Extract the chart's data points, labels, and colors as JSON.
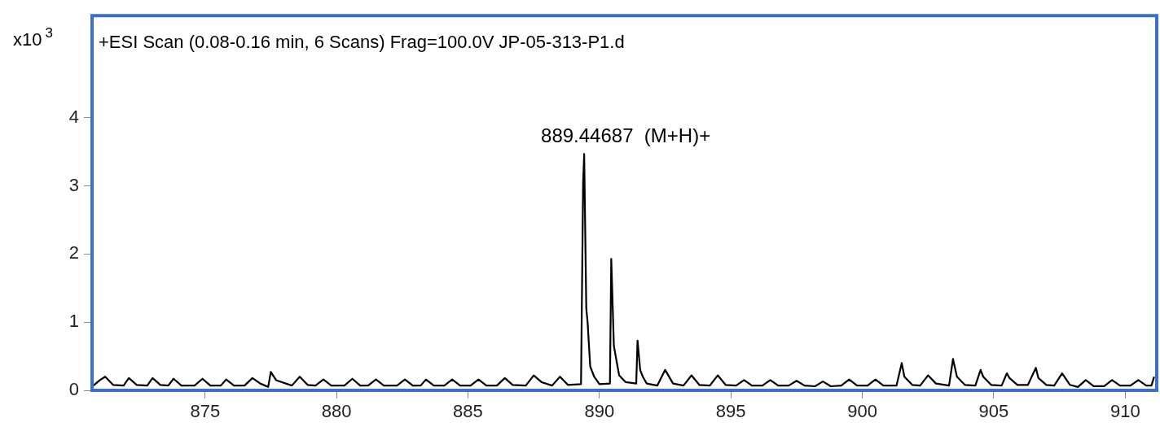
{
  "chart_data": {
    "type": "line",
    "title": "+ESI Scan (0.08-0.16 min, 6 Scans) Frag=100.0V JP-05-313-P1.d",
    "ylabel": "x10$^{3}$",
    "annotations": [
      {
        "text": "889.44687  (M+H)+",
        "x": 889.45,
        "y": 3.47
      }
    ],
    "xlim": [
      870.7,
      911.2
    ],
    "xticks": [
      875,
      880,
      885,
      890,
      895,
      900,
      905,
      910
    ],
    "ylim": [
      0,
      5.5
    ],
    "yticks": [
      0,
      1,
      2,
      3,
      4
    ],
    "grid": false,
    "legend": false,
    "marker": "none",
    "line_style": "solid",
    "series": [
      {
        "color": "#000000",
        "x": [
          870.75,
          871.0,
          871.2,
          871.5,
          871.9,
          872.1,
          872.4,
          872.8,
          873.0,
          873.3,
          873.6,
          873.8,
          874.1,
          874.6,
          874.9,
          875.2,
          875.6,
          875.8,
          876.1,
          876.5,
          876.8,
          877.1,
          877.4,
          877.5,
          877.7,
          878.3,
          878.6,
          878.9,
          879.2,
          879.5,
          879.8,
          880.3,
          880.6,
          880.9,
          881.2,
          881.5,
          881.8,
          882.3,
          882.6,
          882.9,
          883.2,
          883.4,
          883.7,
          884.1,
          884.4,
          884.7,
          885.1,
          885.4,
          885.7,
          886.1,
          886.4,
          886.7,
          887.2,
          887.5,
          887.8,
          888.2,
          888.5,
          888.8,
          889.3,
          889.38,
          889.42,
          889.5,
          889.55,
          889.65,
          889.8,
          890.0,
          890.4,
          890.45,
          890.55,
          890.62,
          890.75,
          891.0,
          891.4,
          891.45,
          891.55,
          891.65,
          891.8,
          892.2,
          892.5,
          892.8,
          893.2,
          893.5,
          893.8,
          894.2,
          894.5,
          894.8,
          895.2,
          895.5,
          895.8,
          896.2,
          896.5,
          896.8,
          897.2,
          897.5,
          897.8,
          898.2,
          898.5,
          898.8,
          899.2,
          899.5,
          899.8,
          900.2,
          900.5,
          900.8,
          901.3,
          901.5,
          901.6,
          901.9,
          902.2,
          902.5,
          902.8,
          903.3,
          903.45,
          903.6,
          903.9,
          904.3,
          904.5,
          904.6,
          904.9,
          905.3,
          905.5,
          905.6,
          905.9,
          906.3,
          906.6,
          906.7,
          907.0,
          907.3,
          907.6,
          907.9,
          908.2,
          908.5,
          908.8,
          909.2,
          909.5,
          909.8,
          910.2,
          910.5,
          910.8,
          911.0,
          911.1
        ],
        "values": [
          0.07,
          0.15,
          0.2,
          0.08,
          0.07,
          0.18,
          0.08,
          0.07,
          0.18,
          0.08,
          0.07,
          0.17,
          0.07,
          0.07,
          0.17,
          0.07,
          0.07,
          0.16,
          0.07,
          0.07,
          0.18,
          0.1,
          0.05,
          0.27,
          0.15,
          0.07,
          0.2,
          0.08,
          0.07,
          0.16,
          0.07,
          0.07,
          0.17,
          0.07,
          0.07,
          0.16,
          0.07,
          0.07,
          0.16,
          0.07,
          0.07,
          0.16,
          0.07,
          0.07,
          0.16,
          0.07,
          0.07,
          0.16,
          0.07,
          0.07,
          0.18,
          0.08,
          0.07,
          0.22,
          0.12,
          0.07,
          0.2,
          0.08,
          0.09,
          3.05,
          3.47,
          1.2,
          1.0,
          0.35,
          0.2,
          0.09,
          0.1,
          1.93,
          0.65,
          0.5,
          0.22,
          0.12,
          0.1,
          0.73,
          0.3,
          0.2,
          0.1,
          0.07,
          0.3,
          0.1,
          0.07,
          0.22,
          0.08,
          0.07,
          0.22,
          0.08,
          0.07,
          0.15,
          0.07,
          0.07,
          0.15,
          0.07,
          0.07,
          0.14,
          0.07,
          0.06,
          0.13,
          0.06,
          0.07,
          0.16,
          0.07,
          0.07,
          0.16,
          0.07,
          0.07,
          0.4,
          0.2,
          0.08,
          0.07,
          0.22,
          0.1,
          0.07,
          0.46,
          0.2,
          0.08,
          0.07,
          0.3,
          0.2,
          0.08,
          0.07,
          0.25,
          0.18,
          0.08,
          0.08,
          0.33,
          0.18,
          0.08,
          0.07,
          0.25,
          0.08,
          0.05,
          0.15,
          0.06,
          0.06,
          0.15,
          0.07,
          0.07,
          0.15,
          0.07,
          0.07,
          0.2
        ]
      }
    ]
  }
}
